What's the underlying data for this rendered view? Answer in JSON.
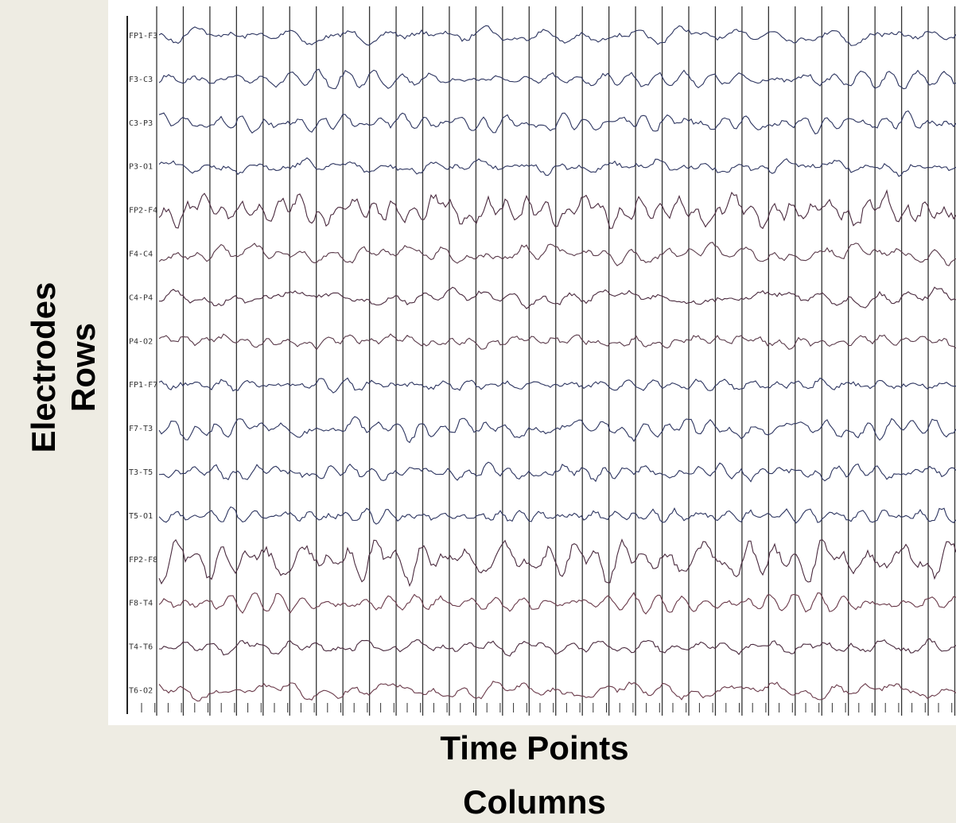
{
  "labels": {
    "y_title": "Electrodes",
    "y_subtitle": "Rows",
    "x_title": "Time Points",
    "x_subtitle": "Columns"
  },
  "channels": [
    "FP1-F3",
    "F3-C3",
    "C3-P3",
    "P3-O1",
    "FP2-F4",
    "F4-C4",
    "C4-P4",
    "P4-O2",
    "FP1-F7",
    "F7-T3",
    "T3-T5",
    "T5-O1",
    "FP2-F8",
    "F8-T4",
    "T4-T6",
    "T6-O2"
  ]
}
